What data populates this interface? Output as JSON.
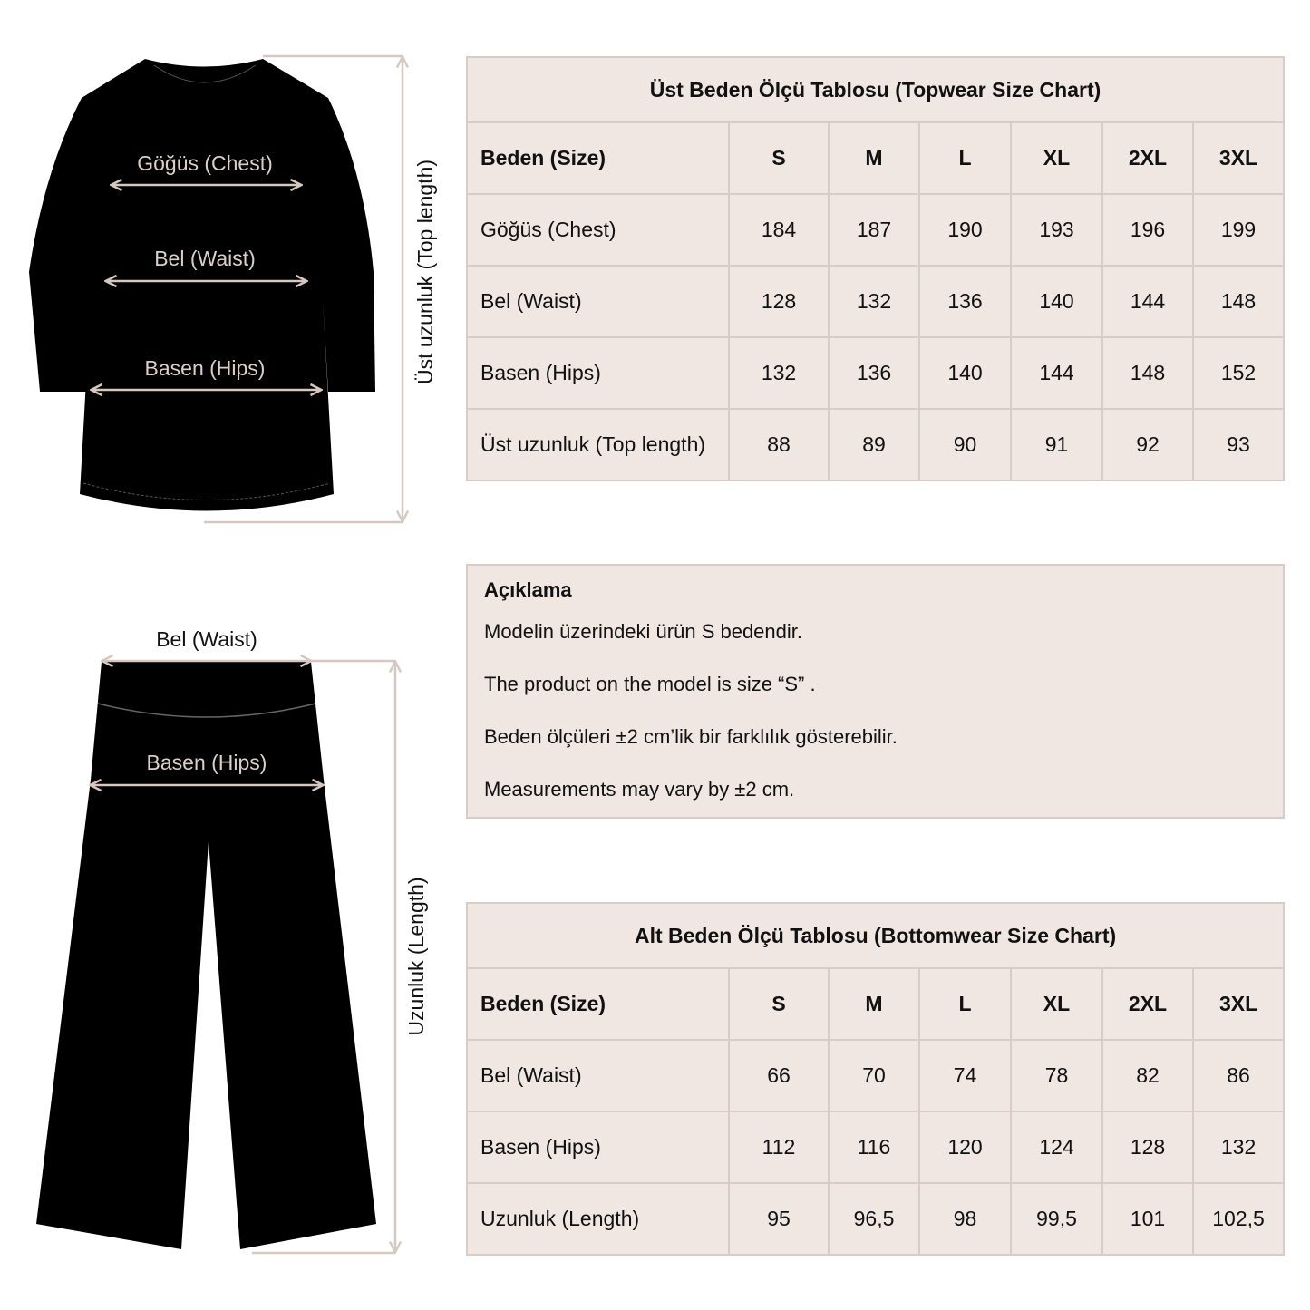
{
  "topwear": {
    "labels": {
      "chest": "Göğüs (Chest)",
      "waist": "Bel (Waist)",
      "hips": "Basen (Hips)",
      "length": "Üst uzunluk (Top length)"
    },
    "table": {
      "title": "Üst Beden Ölçü Tablosu (Topwear Size Chart)",
      "header": [
        "Beden (Size)",
        "S",
        "M",
        "L",
        "XL",
        "2XL",
        "3XL"
      ],
      "rows": [
        [
          "Göğüs (Chest)",
          "184",
          "187",
          "190",
          "193",
          "196",
          "199"
        ],
        [
          "Bel (Waist)",
          "128",
          "132",
          "136",
          "140",
          "144",
          "148"
        ],
        [
          "Basen (Hips)",
          "132",
          "136",
          "140",
          "144",
          "148",
          "152"
        ],
        [
          "Üst uzunluk (Top length)",
          "88",
          "89",
          "90",
          "91",
          "92",
          "93"
        ]
      ]
    }
  },
  "note": {
    "heading": "Açıklama",
    "lines": [
      "Modelin üzerindeki ürün S bedendir.",
      "The product on the model is size “S” .",
      "Beden ölçüleri ±2 cm’lik bir farklılık gösterebilir.",
      "Measurements may vary by ±2 cm."
    ]
  },
  "bottomwear": {
    "labels": {
      "waist": "Bel (Waist)",
      "hips": "Basen (Hips)",
      "length": "Uzunluk (Length)"
    },
    "table": {
      "title": "Alt Beden Ölçü Tablosu (Bottomwear Size Chart)",
      "header": [
        "Beden (Size)",
        "S",
        "M",
        "L",
        "XL",
        "2XL",
        "3XL"
      ],
      "rows": [
        [
          "Bel (Waist)",
          "66",
          "70",
          "74",
          "78",
          "82",
          "86"
        ],
        [
          "Basen (Hips)",
          "112",
          "116",
          "120",
          "124",
          "128",
          "132"
        ],
        [
          "Uzunluk (Length)",
          "95",
          "96,5",
          "98",
          "99,5",
          "101",
          "102,5"
        ]
      ]
    }
  },
  "colors": {
    "panel": "#f0e6e2",
    "border": "#d9ccc6",
    "measure_line": "#d6c8c0",
    "garment": "#000000"
  }
}
